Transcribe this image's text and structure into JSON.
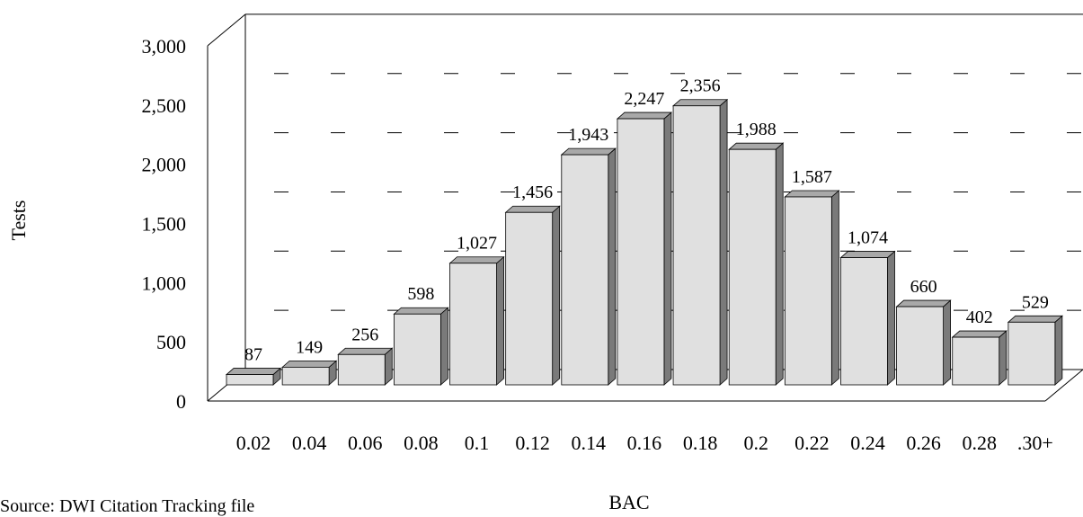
{
  "chart_data": {
    "type": "bar",
    "title": "",
    "xlabel": "BAC",
    "ylabel": "Tests",
    "categories": [
      "0.02",
      "0.04",
      "0.06",
      "0.08",
      "0.1",
      "0.12",
      "0.14",
      "0.16",
      "0.18",
      "0.2",
      "0.22",
      "0.24",
      "0.26",
      "0.28",
      ".30+"
    ],
    "values": [
      87,
      149,
      256,
      598,
      1027,
      1456,
      1943,
      2247,
      2356,
      1988,
      1587,
      1074,
      660,
      402,
      529
    ],
    "value_labels": [
      "87",
      "149",
      "256",
      "598",
      "1,027",
      "1,456",
      "1,943",
      "2,247",
      "2,356",
      "1,988",
      "1,587",
      "1,074",
      "660",
      "402",
      "529"
    ],
    "yticks": [
      0,
      500,
      1000,
      1500,
      2000,
      2500,
      3000
    ],
    "ytick_labels": [
      "0",
      "500",
      "1,000",
      "1,500",
      "2,000",
      "2,500",
      "3,000"
    ],
    "ylim": [
      0,
      3000
    ],
    "grid": "dashed horizontal",
    "legend": "none",
    "three_d": true,
    "colors": {
      "bar_front": "#e0e0e0",
      "bar_top": "#a8a8a8",
      "bar_side": "#7a7a7a",
      "axis": "#000000"
    }
  },
  "footer": {
    "source": "Source: DWI Citation Tracking file"
  }
}
